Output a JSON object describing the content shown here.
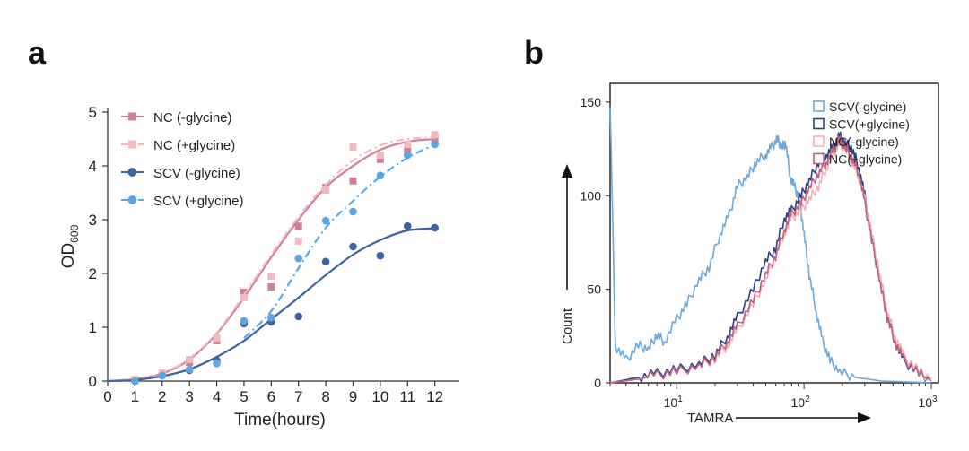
{
  "panel_a_letter": "a",
  "panel_b_letter": "b",
  "chart_data": [
    {
      "type": "scatter",
      "title": "",
      "xlabel": "Time(hours)",
      "ylabel_main": "OD",
      "ylabel_sub": "600",
      "xlim": [
        0,
        12.9
      ],
      "ylim": [
        0,
        5
      ],
      "xticks": [
        "0",
        "1",
        "2",
        "3",
        "4",
        "5",
        "6",
        "7",
        "8",
        "9",
        "10",
        "11",
        "12"
      ],
      "yticks": [
        "0",
        "1",
        "2",
        "3",
        "4",
        "5"
      ],
      "legend_position": "top-left",
      "series": [
        {
          "name": "NC (-glycine)",
          "color": "#cf8098",
          "marker": "square",
          "line": "solid",
          "points": [
            [
              1,
              0.02
            ],
            [
              2,
              0.12
            ],
            [
              3,
              0.35
            ],
            [
              4,
              0.75
            ],
            [
              5,
              1.65
            ],
            [
              6,
              1.75
            ],
            [
              7,
              2.88
            ],
            [
              8,
              3.6
            ],
            [
              9,
              3.72
            ],
            [
              10,
              4.12
            ],
            [
              11,
              4.28
            ],
            [
              12,
              4.5
            ]
          ],
          "fit": [
            [
              0,
              0
            ],
            [
              1,
              0.04
            ],
            [
              2,
              0.14
            ],
            [
              3,
              0.4
            ],
            [
              4,
              0.88
            ],
            [
              5,
              1.55
            ],
            [
              6,
              2.3
            ],
            [
              7,
              3.0
            ],
            [
              8,
              3.6
            ],
            [
              9,
              4.0
            ],
            [
              10,
              4.3
            ],
            [
              11,
              4.45
            ],
            [
              12,
              4.5
            ]
          ]
        },
        {
          "name": "NC (+glycine)",
          "color": "#f4b9c0",
          "marker": "square",
          "line": "dashdot",
          "points": [
            [
              1,
              0.03
            ],
            [
              2,
              0.15
            ],
            [
              3,
              0.4
            ],
            [
              4,
              0.8
            ],
            [
              5,
              1.55
            ],
            [
              6,
              1.95
            ],
            [
              7,
              2.6
            ],
            [
              8,
              3.55
            ],
            [
              9,
              4.35
            ],
            [
              10,
              4.2
            ],
            [
              11,
              4.4
            ],
            [
              12,
              4.58
            ]
          ],
          "fit": [
            [
              0,
              0
            ],
            [
              1,
              0.04
            ],
            [
              2,
              0.15
            ],
            [
              3,
              0.42
            ],
            [
              4,
              0.9
            ],
            [
              5,
              1.6
            ],
            [
              6,
              2.35
            ],
            [
              7,
              3.05
            ],
            [
              8,
              3.65
            ],
            [
              9,
              4.1
            ],
            [
              10,
              4.38
            ],
            [
              11,
              4.5
            ],
            [
              12,
              4.52
            ]
          ]
        },
        {
          "name": "SCV (-glycine)",
          "color": "#3e63a0",
          "marker": "circle",
          "line": "solid",
          "points": [
            [
              1,
              0.0
            ],
            [
              2,
              0.1
            ],
            [
              3,
              0.2
            ],
            [
              4,
              0.38
            ],
            [
              5,
              1.07
            ],
            [
              6,
              1.1
            ],
            [
              7,
              1.2
            ],
            [
              8,
              2.22
            ],
            [
              9,
              2.5
            ],
            [
              10,
              2.33
            ],
            [
              11,
              2.88
            ],
            [
              12,
              2.85
            ]
          ],
          "fit": [
            [
              0,
              0
            ],
            [
              1,
              0.02
            ],
            [
              2,
              0.09
            ],
            [
              3,
              0.22
            ],
            [
              4,
              0.45
            ],
            [
              5,
              0.75
            ],
            [
              6,
              1.15
            ],
            [
              7,
              1.55
            ],
            [
              8,
              1.97
            ],
            [
              9,
              2.35
            ],
            [
              10,
              2.62
            ],
            [
              11,
              2.8
            ],
            [
              12,
              2.84
            ]
          ]
        },
        {
          "name": "SCV (+glycine)",
          "color": "#5aa7e3",
          "marker": "circle",
          "line": "dashdot",
          "points": [
            [
              1,
              0.0
            ],
            [
              2,
              0.1
            ],
            [
              3,
              0.22
            ],
            [
              4,
              0.33
            ],
            [
              5,
              1.12
            ],
            [
              6,
              1.18
            ],
            [
              7,
              2.28
            ],
            [
              8,
              2.98
            ],
            [
              9,
              3.15
            ],
            [
              10,
              3.82
            ],
            [
              11,
              4.2
            ],
            [
              12,
              4.4
            ]
          ],
          "fit": [
            [
              5,
              0.8
            ],
            [
              6,
              1.3
            ],
            [
              7,
              2.1
            ],
            [
              8,
              2.85
            ],
            [
              9,
              3.35
            ],
            [
              10,
              3.8
            ],
            [
              11,
              4.15
            ],
            [
              12,
              4.4
            ]
          ]
        }
      ]
    },
    {
      "type": "line",
      "title": "",
      "xlabel": "TAMRA",
      "ylabel": "Count",
      "xscale": "log",
      "xlim": [
        3,
        1000
      ],
      "ylim": [
        0,
        160
      ],
      "yticks": [
        "0",
        "50",
        "100",
        "150"
      ],
      "xticks": [
        {
          "base": "10",
          "exp": "1"
        },
        {
          "base": "10",
          "exp": "2"
        },
        {
          "base": "10",
          "exp": "3"
        }
      ],
      "legend_position": "top-right",
      "series": [
        {
          "name": "SCV(-glycine)",
          "color": "#6fa9d8",
          "points": [
            [
              3,
              150
            ],
            [
              3.3,
              20
            ],
            [
              4,
              12
            ],
            [
              5,
              20
            ],
            [
              6,
              18
            ],
            [
              7,
              26
            ],
            [
              8,
              22
            ],
            [
              10,
              34
            ],
            [
              12,
              42
            ],
            [
              15,
              55
            ],
            [
              18,
              62
            ],
            [
              22,
              80
            ],
            [
              26,
              90
            ],
            [
              30,
              105
            ],
            [
              36,
              110
            ],
            [
              42,
              118
            ],
            [
              50,
              122
            ],
            [
              56,
              126
            ],
            [
              62,
              130
            ],
            [
              67,
              126
            ],
            [
              72,
              128
            ],
            [
              78,
              110
            ],
            [
              85,
              104
            ],
            [
              92,
              98
            ],
            [
              100,
              80
            ],
            [
              110,
              58
            ],
            [
              125,
              38
            ],
            [
              140,
              22
            ],
            [
              160,
              12
            ],
            [
              190,
              6
            ],
            [
              250,
              3
            ],
            [
              400,
              1
            ],
            [
              1000,
              0
            ]
          ]
        },
        {
          "name": "SCV(+glycine)",
          "color": "#2e3f87",
          "points": [
            [
              3,
              0
            ],
            [
              5,
              3
            ],
            [
              7,
              5
            ],
            [
              10,
              7
            ],
            [
              15,
              10
            ],
            [
              20,
              15
            ],
            [
              25,
              25
            ],
            [
              30,
              35
            ],
            [
              40,
              50
            ],
            [
              50,
              65
            ],
            [
              60,
              72
            ],
            [
              70,
              88
            ],
            [
              80,
              92
            ],
            [
              95,
              100
            ],
            [
              110,
              108
            ],
            [
              130,
              118
            ],
            [
              150,
              122
            ],
            [
              170,
              126
            ],
            [
              190,
              132
            ],
            [
              210,
              128
            ],
            [
              240,
              125
            ],
            [
              270,
              115
            ],
            [
              300,
              100
            ],
            [
              340,
              78
            ],
            [
              400,
              52
            ],
            [
              450,
              36
            ],
            [
              520,
              22
            ],
            [
              600,
              12
            ],
            [
              800,
              5
            ],
            [
              1000,
              2
            ]
          ]
        },
        {
          "name": "NC(-glycine)",
          "color": "#f3b0b9",
          "points": [
            [
              3,
              0
            ],
            [
              5,
              2
            ],
            [
              7,
              4
            ],
            [
              10,
              6
            ],
            [
              15,
              9
            ],
            [
              20,
              13
            ],
            [
              25,
              20
            ],
            [
              30,
              28
            ],
            [
              40,
              42
            ],
            [
              50,
              55
            ],
            [
              60,
              68
            ],
            [
              70,
              80
            ],
            [
              80,
              88
            ],
            [
              95,
              92
            ],
            [
              110,
              98
            ],
            [
              130,
              105
            ],
            [
              150,
              115
            ],
            [
              170,
              122
            ],
            [
              190,
              128
            ],
            [
              210,
              125
            ],
            [
              240,
              118
            ],
            [
              270,
              110
            ],
            [
              300,
              98
            ],
            [
              340,
              80
            ],
            [
              400,
              56
            ],
            [
              450,
              38
            ],
            [
              520,
              25
            ],
            [
              600,
              15
            ],
            [
              800,
              6
            ],
            [
              1000,
              2
            ]
          ]
        },
        {
          "name": "NC(+glycine)",
          "color": "#c0607f",
          "points": [
            [
              3,
              0
            ],
            [
              5,
              2
            ],
            [
              7,
              4
            ],
            [
              10,
              6
            ],
            [
              15,
              9
            ],
            [
              20,
              14
            ],
            [
              25,
              22
            ],
            [
              30,
              30
            ],
            [
              40,
              44
            ],
            [
              50,
              58
            ],
            [
              60,
              68
            ],
            [
              70,
              82
            ],
            [
              80,
              90
            ],
            [
              95,
              96
            ],
            [
              110,
              104
            ],
            [
              130,
              112
            ],
            [
              150,
              118
            ],
            [
              170,
              124
            ],
            [
              190,
              130
            ],
            [
              210,
              126
            ],
            [
              240,
              120
            ],
            [
              270,
              112
            ],
            [
              300,
              96
            ],
            [
              340,
              76
            ],
            [
              400,
              52
            ],
            [
              450,
              35
            ],
            [
              520,
              22
            ],
            [
              600,
              13
            ],
            [
              800,
              5
            ],
            [
              1000,
              1
            ]
          ]
        }
      ]
    }
  ]
}
